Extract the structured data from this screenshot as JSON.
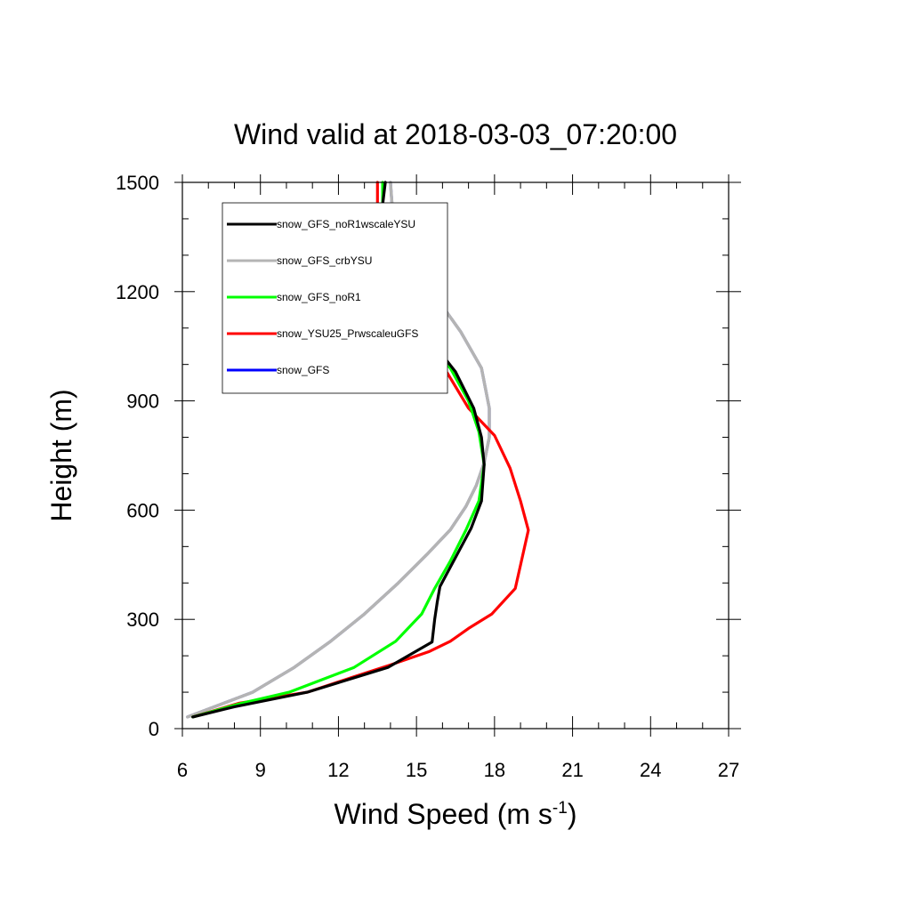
{
  "chart_data": {
    "type": "line",
    "title": "Wind valid at 2018-03-03_07:20:00",
    "xlabel": "Wind Speed (m s",
    "xlabel_sup": "-1",
    "xlabel_end": ")",
    "ylabel": "Height (m)",
    "xlim": [
      6,
      27
    ],
    "ylim": [
      0,
      1500
    ],
    "xticks": [
      6,
      9,
      12,
      15,
      18,
      21,
      24,
      27
    ],
    "yticks": [
      0,
      300,
      600,
      900,
      1200,
      1500
    ],
    "xtick_labels": [
      "6",
      "9",
      "12",
      "15",
      "18",
      "21",
      "24",
      "27"
    ],
    "ytick_labels": [
      "0",
      "300",
      "600",
      "900",
      "1200",
      "1500"
    ],
    "legend_position": "top-left",
    "series": [
      {
        "name": "snow_GFS",
        "color": "#0000ff",
        "points": [
          [
            6.2,
            32
          ],
          [
            8.7,
            100
          ],
          [
            10.3,
            168
          ],
          [
            11.7,
            240
          ],
          [
            13.0,
            315
          ],
          [
            14.3,
            400
          ],
          [
            15.4,
            478
          ],
          [
            16.3,
            546
          ],
          [
            16.9,
            610
          ],
          [
            17.3,
            668
          ],
          [
            17.6,
            730
          ],
          [
            17.8,
            800
          ],
          [
            17.8,
            880
          ],
          [
            17.5,
            990
          ],
          [
            16.7,
            1090
          ],
          [
            15.6,
            1200
          ],
          [
            14.6,
            1295
          ],
          [
            14.1,
            1400
          ],
          [
            14.0,
            1500
          ]
        ]
      },
      {
        "name": "snow_GFS_crbYSU",
        "color": "#b4b4b4",
        "points": [
          [
            6.2,
            32
          ],
          [
            8.7,
            100
          ],
          [
            10.3,
            168
          ],
          [
            11.7,
            240
          ],
          [
            13.0,
            315
          ],
          [
            14.3,
            400
          ],
          [
            15.4,
            478
          ],
          [
            16.3,
            546
          ],
          [
            16.9,
            610
          ],
          [
            17.3,
            668
          ],
          [
            17.6,
            730
          ],
          [
            17.8,
            800
          ],
          [
            17.8,
            880
          ],
          [
            17.5,
            990
          ],
          [
            16.7,
            1090
          ],
          [
            15.6,
            1200
          ],
          [
            14.6,
            1295
          ],
          [
            14.1,
            1400
          ],
          [
            14.0,
            1500
          ]
        ]
      },
      {
        "name": "snow_YSU25_PrwscaleuGFS",
        "color": "#ff0000",
        "points": [
          [
            6.4,
            32
          ],
          [
            8.2,
            70
          ],
          [
            10.8,
            100
          ],
          [
            12.5,
            140
          ],
          [
            14.0,
            175
          ],
          [
            15.5,
            212
          ],
          [
            16.3,
            240
          ],
          [
            17.0,
            275
          ],
          [
            17.9,
            315
          ],
          [
            18.8,
            385
          ],
          [
            19.3,
            545
          ],
          [
            19.0,
            625
          ],
          [
            18.6,
            715
          ],
          [
            18.0,
            805
          ],
          [
            17.0,
            880
          ],
          [
            16.2,
            975
          ],
          [
            15.4,
            1050
          ],
          [
            14.2,
            1160
          ],
          [
            13.8,
            1200
          ],
          [
            13.5,
            1280
          ],
          [
            13.5,
            1400
          ],
          [
            13.5,
            1500
          ]
        ]
      },
      {
        "name": "snow_GFS_noR1",
        "color": "#00ff00",
        "points": [
          [
            6.4,
            32
          ],
          [
            8.3,
            70
          ],
          [
            10.1,
            100
          ],
          [
            12.6,
            168
          ],
          [
            14.2,
            240
          ],
          [
            15.2,
            315
          ],
          [
            15.7,
            385
          ],
          [
            16.3,
            460
          ],
          [
            16.9,
            545
          ],
          [
            17.4,
            625
          ],
          [
            17.6,
            725
          ],
          [
            17.4,
            815
          ],
          [
            17.0,
            900
          ],
          [
            16.3,
            990
          ],
          [
            15.3,
            1075
          ],
          [
            14.0,
            1190
          ],
          [
            13.7,
            1265
          ],
          [
            13.7,
            1400
          ],
          [
            13.7,
            1500
          ]
        ]
      },
      {
        "name": "snow_GFS_noR1wscaleYSU",
        "color": "#000000",
        "points": [
          [
            6.4,
            32
          ],
          [
            8.0,
            60
          ],
          [
            10.8,
            100
          ],
          [
            13.9,
            168
          ],
          [
            15.6,
            238
          ],
          [
            15.7,
            300
          ],
          [
            15.8,
            348
          ],
          [
            15.9,
            390
          ],
          [
            16.5,
            470
          ],
          [
            17.1,
            550
          ],
          [
            17.5,
            625
          ],
          [
            17.6,
            725
          ],
          [
            17.5,
            800
          ],
          [
            17.2,
            880
          ],
          [
            16.5,
            980
          ],
          [
            15.4,
            1080
          ],
          [
            14.0,
            1190
          ],
          [
            13.6,
            1280
          ],
          [
            13.6,
            1380
          ],
          [
            13.8,
            1500
          ]
        ]
      }
    ],
    "legend": [
      {
        "name": "snow_GFS_noR1wscaleYSU",
        "color": "#000000"
      },
      {
        "name": "snow_GFS_crbYSU",
        "color": "#b4b4b4"
      },
      {
        "name": "snow_GFS_noR1",
        "color": "#00ff00"
      },
      {
        "name": "snow_YSU25_PrwscaleuGFS",
        "color": "#ff0000"
      },
      {
        "name": "snow_GFS",
        "color": "#0000ff"
      }
    ]
  }
}
